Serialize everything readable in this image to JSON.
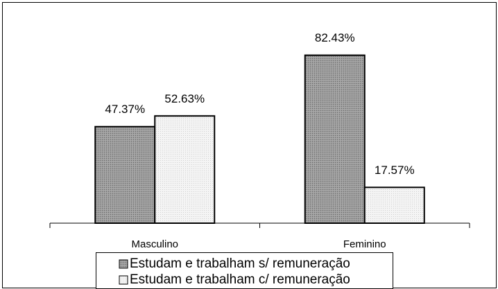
{
  "chart_data": {
    "type": "bar",
    "categories": [
      "Masculino",
      "Feminino"
    ],
    "series": [
      {
        "name": "Estudam e trabalham s/ remuneração",
        "color": "#999999",
        "values": [
          47.37,
          82.43
        ],
        "value_labels": [
          "47.37%",
          "82.43%"
        ]
      },
      {
        "name": "Estudam e trabalham c/ remuneração",
        "color": "#eeeeee",
        "values": [
          52.63,
          17.57
        ],
        "value_labels": [
          "52.63%",
          "17.57%"
        ]
      }
    ]
  }
}
